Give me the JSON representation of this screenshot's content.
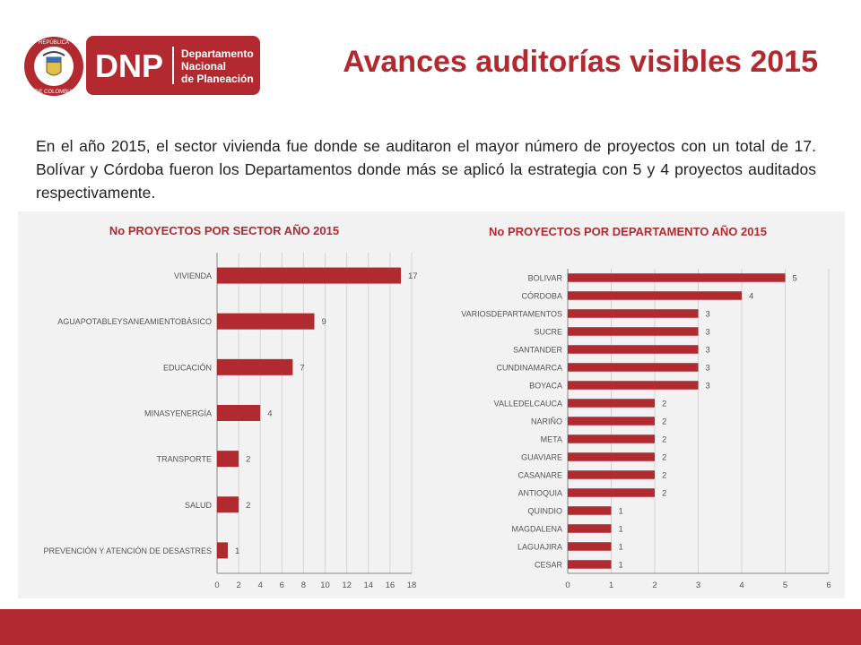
{
  "header": {
    "title": "Avances auditorías visibles 2015",
    "seal_text_top": "REPÚBLICA",
    "seal_text_bottom": "DE COLOMBIA",
    "logo_letters": "DNP",
    "logo_line1": "Departamento",
    "logo_line2": "Nacional",
    "logo_line3": "de Planeación"
  },
  "intro": "En el año 2015, el sector vivienda fue donde se auditaron el mayor número de proyectos con un total de 17. Bolívar y Córdoba fueron los Departamentos donde más se aplicó la estrategia con 5 y 4 proyectos auditados respectivamente.",
  "colors": {
    "accent": "#b22a30",
    "bar": "#b02a30",
    "panel": "#f2f2f2",
    "footer": "#b02a30"
  },
  "chart_data": [
    {
      "type": "bar",
      "orientation": "horizontal",
      "title": "No PROYECTOS POR SECTOR AÑO 2015",
      "categories": [
        "VIVIENDA",
        "AGUAPOTABLEYSANEAMIENTOBÁSICO",
        "EDUCACIÓN",
        "MINASYENERGÍA",
        "TRANSPORTE",
        "SALUD",
        "PREVENCIÓN Y ATENCIÓN DE DESASTRES"
      ],
      "values": [
        17,
        9,
        7,
        4,
        2,
        2,
        1
      ],
      "xlim": [
        0,
        18
      ],
      "xticks": [
        0,
        2,
        4,
        6,
        8,
        10,
        12,
        14,
        16,
        18
      ],
      "grid": true,
      "legend": "none"
    },
    {
      "type": "bar",
      "orientation": "horizontal",
      "title": "No PROYECTOS POR DEPARTAMENTO AÑO 2015",
      "categories": [
        "BOLIVAR",
        "CÓRDOBA",
        "VARIOSDEPARTAMENTOS",
        "SUCRE",
        "SANTANDER",
        "CUNDINAMARCA",
        "BOYACA",
        "VALLEDELCAUCA",
        "NARIÑO",
        "META",
        "GUAVIARE",
        "CASANARE",
        "ANTIOQUIA",
        "QUINDIO",
        "MAGDALENA",
        "LAGUAJIRA",
        "CESAR"
      ],
      "values": [
        5,
        4,
        3,
        3,
        3,
        3,
        3,
        2,
        2,
        2,
        2,
        2,
        2,
        1,
        1,
        1,
        1
      ],
      "xlim": [
        0,
        6
      ],
      "xticks": [
        0,
        1,
        2,
        3,
        4,
        5,
        6
      ],
      "grid": true,
      "legend": "none"
    }
  ]
}
